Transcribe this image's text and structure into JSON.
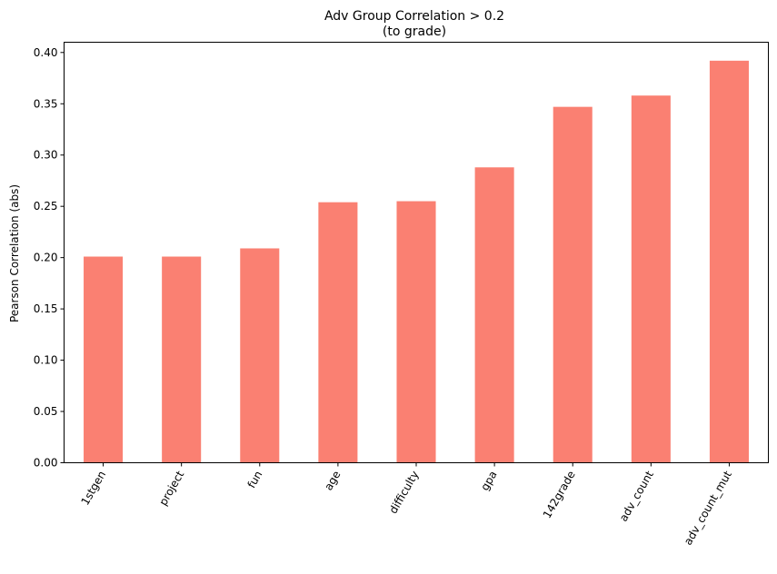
{
  "chart_data": {
    "type": "bar",
    "title": "Adv Group Correlation > 0.2",
    "subtitle": "(to grade)",
    "xlabel": "",
    "ylabel": "Pearson Correlation (abs)",
    "categories": [
      "1stgen",
      "project",
      "fun",
      "age",
      "difficulty",
      "gpa",
      "142grade",
      "adv_count",
      "adv_count_mut"
    ],
    "values": [
      0.201,
      0.201,
      0.209,
      0.254,
      0.255,
      0.288,
      0.347,
      0.358,
      0.392
    ],
    "ylim": [
      0,
      0.41
    ],
    "yticks": [
      "0.00",
      "0.05",
      "0.10",
      "0.15",
      "0.20",
      "0.25",
      "0.30",
      "0.35",
      "0.40"
    ],
    "bar_color": "#fa8072",
    "grid": false,
    "legend": "none"
  }
}
